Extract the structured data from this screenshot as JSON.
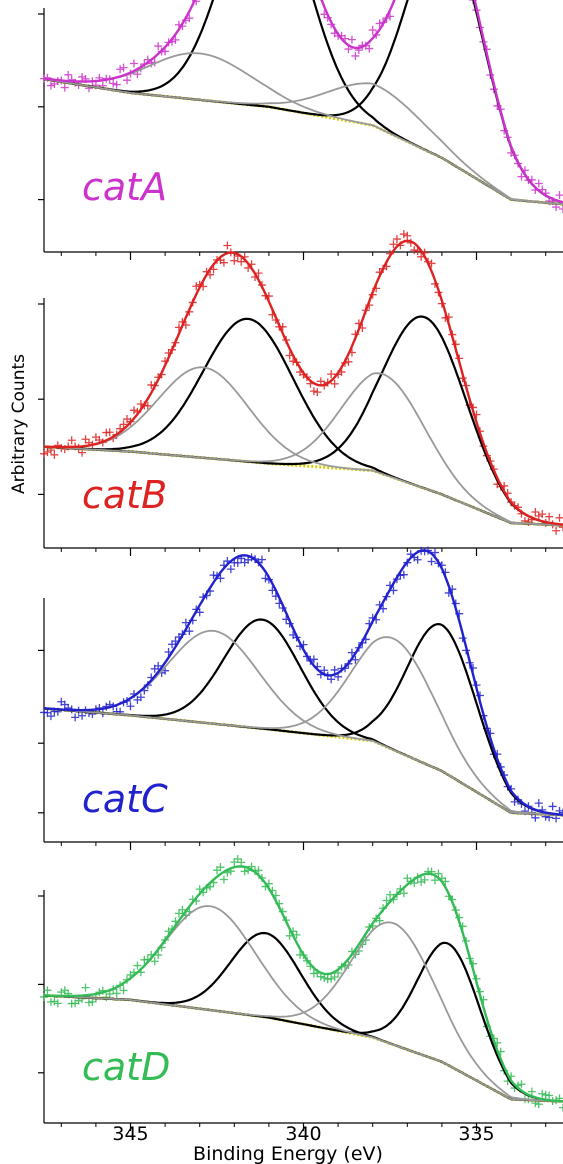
{
  "chart_data": {
    "type": "line",
    "figure": "stacked XPS spectra",
    "xlabel": "Binding Energy (eV)",
    "ylabel": "Arbitrary Counts",
    "xlim": [
      347.5,
      332.5
    ],
    "x_reversed": true,
    "xticks": [
      345,
      340,
      335
    ],
    "xtick_labels": [
      "345",
      "340",
      "335"
    ],
    "grid": false,
    "panels": [
      {
        "label": "catA",
        "color": "#cc33cc",
        "ylim": [
          0,
          100
        ],
        "yticks": [
          20,
          60,
          100
        ],
        "baseline": [
          [
            347.5,
            72
          ],
          [
            345,
            66
          ],
          [
            341,
            60
          ],
          [
            338,
            52
          ],
          [
            336,
            38
          ],
          [
            334,
            20
          ],
          [
            332.5,
            18
          ]
        ],
        "peaks": [
          {
            "name": "primary-high",
            "center": 341.1,
            "height": 97,
            "width": 1.2,
            "color": "#000000"
          },
          {
            "name": "primary-low",
            "center": 335.9,
            "height": 100,
            "width": 1.1,
            "color": "#000000"
          },
          {
            "name": "secondary-high",
            "center": 343.0,
            "height": 20,
            "width": 1.5,
            "color": "#999999"
          },
          {
            "name": "secondary-low",
            "center": 337.9,
            "height": 18,
            "width": 1.4,
            "color": "#999999"
          }
        ]
      },
      {
        "label": "catB",
        "color": "#dd2222",
        "ylim": [
          0,
          100
        ],
        "yticks": [
          20,
          60,
          100
        ],
        "baseline": [
          [
            347.5,
            40
          ],
          [
            345,
            38
          ],
          [
            341,
            33
          ],
          [
            338,
            30
          ],
          [
            336,
            20
          ],
          [
            334,
            8
          ],
          [
            332.5,
            7
          ]
        ],
        "peaks": [
          {
            "name": "primary-high",
            "center": 341.6,
            "height": 60,
            "width": 1.3,
            "color": "#000000"
          },
          {
            "name": "primary-low",
            "center": 336.5,
            "height": 72,
            "width": 1.2,
            "color": "#000000"
          },
          {
            "name": "secondary-high",
            "center": 342.9,
            "height": 38,
            "width": 1.3,
            "color": "#999999"
          },
          {
            "name": "secondary-low",
            "center": 337.7,
            "height": 42,
            "width": 1.2,
            "color": "#999999"
          }
        ]
      },
      {
        "label": "catC",
        "color": "#2222cc",
        "ylim": [
          0,
          100
        ],
        "yticks": [
          10,
          40,
          80
        ],
        "baseline": [
          [
            347.5,
            55
          ],
          [
            345,
            52
          ],
          [
            341,
            46
          ],
          [
            338,
            41
          ],
          [
            336,
            28
          ],
          [
            334,
            10
          ],
          [
            332.5,
            9
          ]
        ],
        "peaks": [
          {
            "name": "primary-high",
            "center": 341.2,
            "height": 47,
            "width": 1.1,
            "color": "#000000"
          },
          {
            "name": "primary-low",
            "center": 336.0,
            "height": 63,
            "width": 1.0,
            "color": "#000000"
          },
          {
            "name": "secondary-high",
            "center": 342.6,
            "height": 40,
            "width": 1.3,
            "color": "#999999"
          },
          {
            "name": "secondary-low",
            "center": 337.4,
            "height": 48,
            "width": 1.2,
            "color": "#999999"
          }
        ]
      },
      {
        "label": "catD",
        "color": "#33bb55",
        "ylim": [
          0,
          100
        ],
        "yticks": [
          20,
          60,
          100
        ],
        "baseline": [
          [
            347.5,
            55
          ],
          [
            345,
            53
          ],
          [
            341,
            45
          ],
          [
            338,
            36
          ],
          [
            336,
            25
          ],
          [
            334,
            8
          ],
          [
            332.5,
            7
          ]
        ],
        "peaks": [
          {
            "name": "primary-high",
            "center": 341.1,
            "height": 38,
            "width": 1.0,
            "color": "#000000"
          },
          {
            "name": "primary-low",
            "center": 335.8,
            "height": 55,
            "width": 0.9,
            "color": "#000000"
          },
          {
            "name": "secondary-high",
            "center": 342.7,
            "height": 47,
            "width": 1.3,
            "color": "#999999"
          },
          {
            "name": "secondary-low",
            "center": 337.4,
            "height": 55,
            "width": 1.2,
            "color": "#999999"
          }
        ]
      }
    ]
  }
}
